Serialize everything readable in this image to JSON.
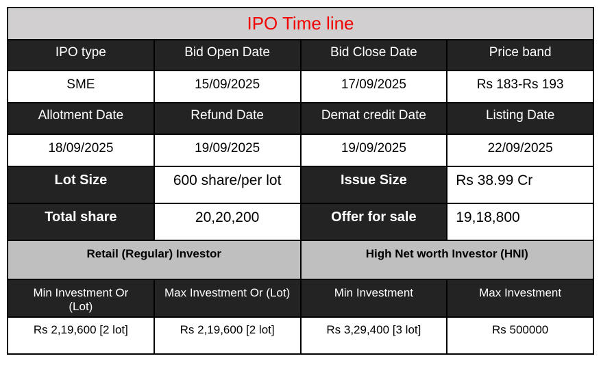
{
  "title": "IPO Time line",
  "colors": {
    "title_text": "#f00404",
    "title_bg": "#d1cfcf",
    "dark_cell_bg": "#232323",
    "dark_cell_text": "#ffffff",
    "group_bg": "#bfbfbf",
    "border": "#000000"
  },
  "timeline": {
    "header1": [
      "IPO type",
      "Bid Open Date",
      "Bid Close Date",
      "Price band"
    ],
    "values1": [
      "SME",
      "15/09/2025",
      "17/09/2025",
      "Rs 183-Rs 193"
    ],
    "header2": [
      "Allotment Date",
      "Refund Date",
      "Demat credit Date",
      "Listing Date"
    ],
    "values2": [
      "18/09/2025",
      "19/09/2025",
      "19/09/2025",
      "22/09/2025"
    ]
  },
  "lot_section": {
    "lot_size_label": "Lot Size",
    "lot_size_value": "600 share/per lot",
    "issue_size_label": "Issue Size",
    "issue_size_value": "Rs 38.99 Cr",
    "total_share_label": "Total share",
    "total_share_value": "20,20,200",
    "offer_for_sale_label": "Offer for sale",
    "offer_for_sale_value": "19,18,800"
  },
  "investor_section": {
    "groups": [
      "Retail (Regular) Investor",
      "High Net worth Investor (HNI)"
    ],
    "headers": [
      "Min Investment Or (Lot)",
      "Max Investment Or (Lot)",
      "Min Investment",
      "Max Investment"
    ],
    "values": [
      "Rs 2,19,600 [2 lot]",
      "Rs 2,19,600 [2 lot]",
      "Rs 3,29,400 [3 lot]",
      "Rs 500000"
    ]
  }
}
